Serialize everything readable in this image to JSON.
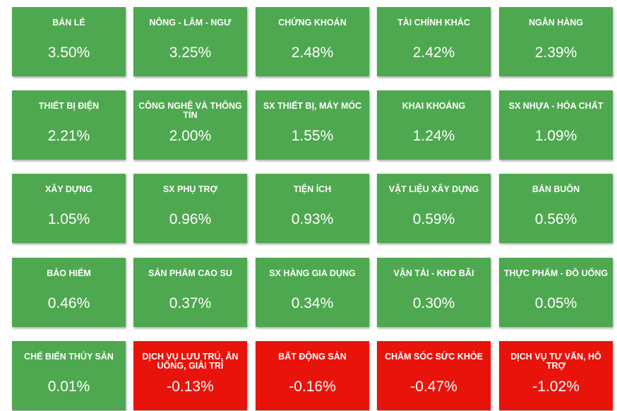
{
  "tiles": [
    {
      "name": "BÁN LẺ",
      "change": "3.50%"
    },
    {
      "name": "NÔNG - LÂM - NGƯ",
      "change": "3.25%"
    },
    {
      "name": "CHỨNG KHOÁN",
      "change": "2.48%"
    },
    {
      "name": "TÀI CHÍNH KHÁC",
      "change": "2.42%"
    },
    {
      "name": "NGÂN HÀNG",
      "change": "2.39%"
    },
    {
      "name": "THIẾT BỊ ĐIỆN",
      "change": "2.21%"
    },
    {
      "name": "CÔNG NGHỆ VÀ THÔNG TIN",
      "change": "2.00%"
    },
    {
      "name": "SX THIẾT BỊ, MÁY MÓC",
      "change": "1.55%"
    },
    {
      "name": "KHAI KHOÁNG",
      "change": "1.24%"
    },
    {
      "name": "SX NHỰA - HÓA CHẤT",
      "change": "1.09%"
    },
    {
      "name": "XÂY DỰNG",
      "change": "1.05%"
    },
    {
      "name": "SX PHỤ TRỢ",
      "change": "0.96%"
    },
    {
      "name": "TIỆN ÍCH",
      "change": "0.93%"
    },
    {
      "name": "VẬT LIỆU XÂY DỰNG",
      "change": "0.59%"
    },
    {
      "name": "BÁN BUÔN",
      "change": "0.56%"
    },
    {
      "name": "BẢO HIỂM",
      "change": "0.46%"
    },
    {
      "name": "SẢN PHẨM CAO SU",
      "change": "0.37%"
    },
    {
      "name": "SX HÀNG GIA DỤNG",
      "change": "0.34%"
    },
    {
      "name": "VẬN TẢI - KHO BÃI",
      "change": "0.30%"
    },
    {
      "name": "THỰC PHẨM - ĐỒ UỐNG",
      "change": "0.05%"
    },
    {
      "name": "CHẾ BIẾN THỦY SẢN",
      "change": "0.01%"
    },
    {
      "name": "DỊCH VỤ LƯU TRÚ, ĂN UỐNG, GIẢI TRÍ",
      "change": "-0.13%"
    },
    {
      "name": "BẤT ĐỘNG SẢN",
      "change": "-0.16%"
    },
    {
      "name": "CHĂM SÓC SỨC KHỎE",
      "change": "-0.47%"
    },
    {
      "name": "DỊCH VỤ TƯ VẤN, HỖ TRỢ",
      "change": "-1.02%"
    }
  ]
}
